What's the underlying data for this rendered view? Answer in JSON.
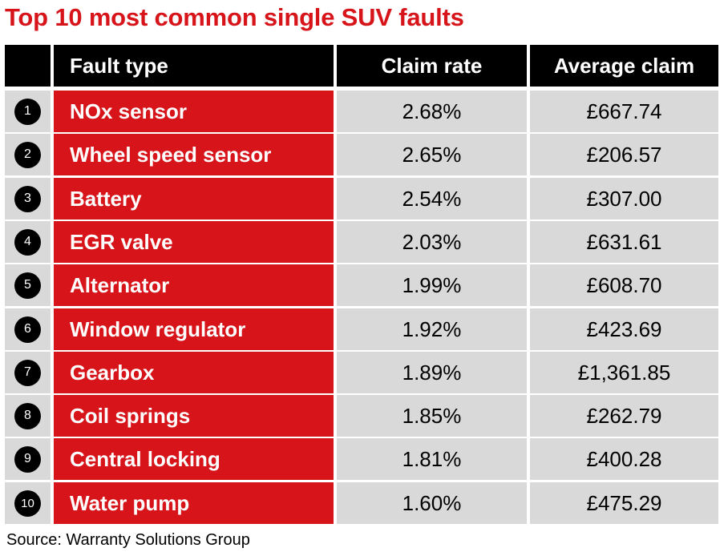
{
  "title": "Top 10 most common single SUV faults",
  "source": "Source: Warranty Solutions Group",
  "colors": {
    "accent": "#d7141a",
    "header_bg": "#000000",
    "cell_bg": "#d9d9d9"
  },
  "chart_data": {
    "type": "table",
    "title": "Top 10 most common single SUV faults",
    "columns": [
      "",
      "Fault type",
      "Claim rate",
      "Average claim"
    ],
    "rows": [
      {
        "rank": "1",
        "fault": "NOx sensor",
        "claim_rate": "2.68%",
        "average_claim": "£667.74"
      },
      {
        "rank": "2",
        "fault": "Wheel speed sensor",
        "claim_rate": "2.65%",
        "average_claim": "£206.57"
      },
      {
        "rank": "3",
        "fault": "Battery",
        "claim_rate": "2.54%",
        "average_claim": "£307.00"
      },
      {
        "rank": "4",
        "fault": "EGR valve",
        "claim_rate": "2.03%",
        "average_claim": "£631.61"
      },
      {
        "rank": "5",
        "fault": "Alternator",
        "claim_rate": "1.99%",
        "average_claim": "£608.70"
      },
      {
        "rank": "6",
        "fault": "Window regulator",
        "claim_rate": "1.92%",
        "average_claim": "£423.69"
      },
      {
        "rank": "7",
        "fault": "Gearbox",
        "claim_rate": "1.89%",
        "average_claim": "£1,361.85"
      },
      {
        "rank": "8",
        "fault": "Coil springs",
        "claim_rate": "1.85%",
        "average_claim": "£262.79"
      },
      {
        "rank": "9",
        "fault": "Central locking",
        "claim_rate": "1.81%",
        "average_claim": "£400.28"
      },
      {
        "rank": "10",
        "fault": "Water pump",
        "claim_rate": "1.60%",
        "average_claim": "£475.29"
      }
    ]
  }
}
